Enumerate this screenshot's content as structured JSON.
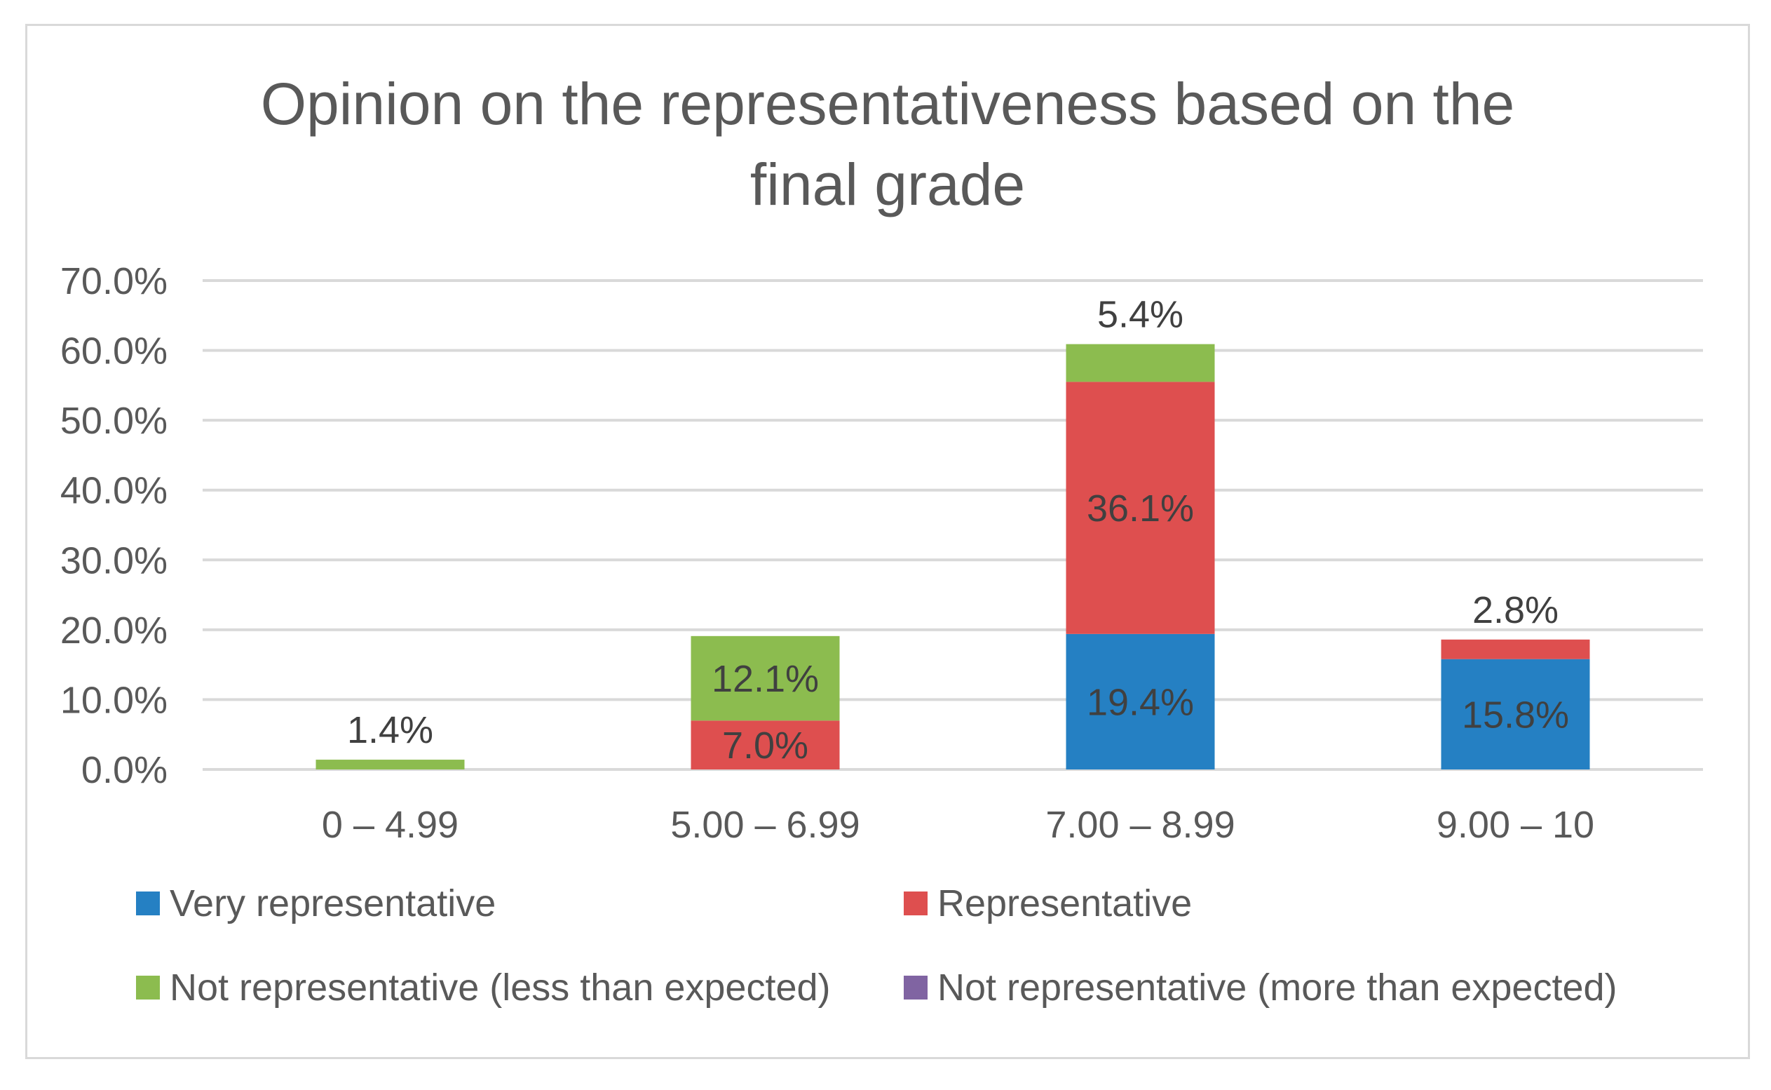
{
  "chart_data": {
    "type": "bar",
    "stacked": true,
    "title": "Opinion on the representativeness based on the final grade",
    "title_lines": [
      "Opinion on the representativeness based on the",
      "final grade"
    ],
    "categories": [
      "0 – 4.99",
      "5.00 – 6.99",
      "7.00 – 8.99",
      "9.00 – 10"
    ],
    "ylim": [
      0,
      70
    ],
    "yticks": [
      0,
      10,
      20,
      30,
      40,
      50,
      60,
      70
    ],
    "ytick_labels": [
      "0.0%",
      "10.0%",
      "20.0%",
      "30.0%",
      "40.0%",
      "50.0%",
      "60.0%",
      "70.0%"
    ],
    "grid": true,
    "legend_position": "bottom",
    "series": [
      {
        "name": "Very representative",
        "color": "#2580c3",
        "values": [
          0,
          0,
          19.4,
          15.8
        ],
        "labels": [
          "",
          "",
          "19.4%",
          "15.8%"
        ]
      },
      {
        "name": "Representative",
        "color": "#de4f4f",
        "values": [
          0,
          7.0,
          36.1,
          2.8
        ],
        "labels": [
          "",
          "7.0%",
          "36.1%",
          "2.8%"
        ]
      },
      {
        "name": "Not representative (less than expected)",
        "color": "#8cbc4f",
        "values": [
          1.4,
          12.1,
          5.4,
          0
        ],
        "labels": [
          "1.4%",
          "12.1%",
          "5.4%",
          ""
        ]
      },
      {
        "name": "Not representative (more than expected)",
        "color": "#8064a2",
        "values": [
          0,
          0,
          0,
          0
        ],
        "labels": [
          "",
          "",
          "",
          ""
        ]
      }
    ]
  }
}
